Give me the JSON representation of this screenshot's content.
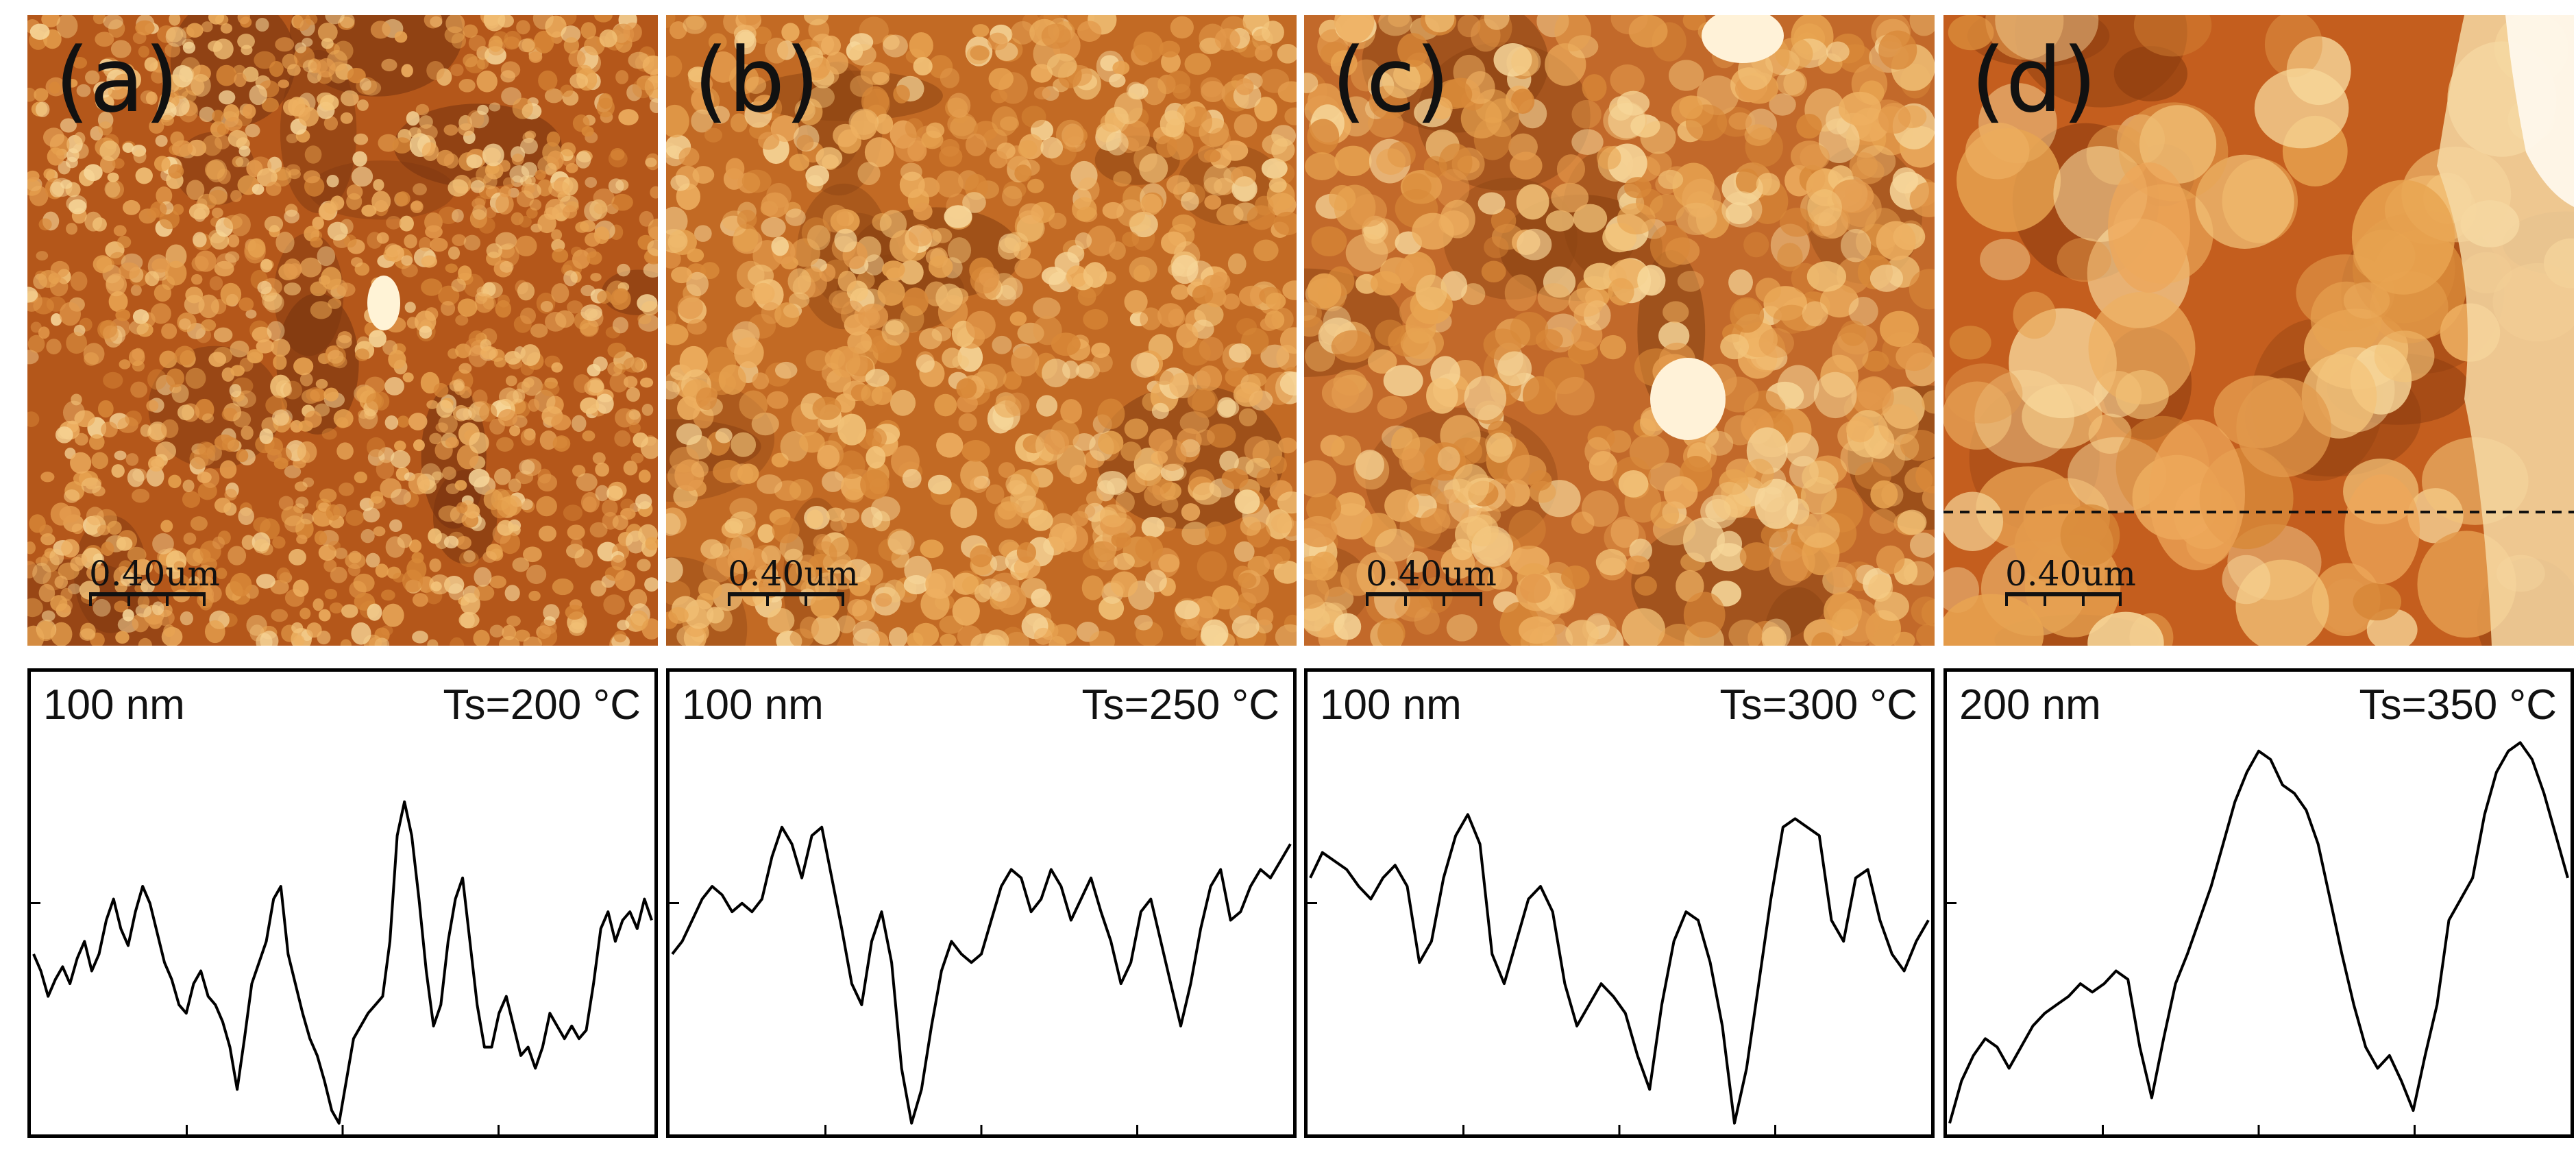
{
  "figure": {
    "panels": [
      {
        "id": "a",
        "label": "(a)",
        "scale_label": "0.40um",
        "height_scale": "100 nm",
        "temperature": "Ts=200 °C",
        "afm_style": "fine",
        "has_line_cut": false,
        "profile": [
          0.42,
          0.38,
          0.32,
          0.36,
          0.39,
          0.35,
          0.41,
          0.45,
          0.38,
          0.42,
          0.5,
          0.55,
          0.48,
          0.44,
          0.52,
          0.58,
          0.54,
          0.47,
          0.4,
          0.36,
          0.3,
          0.28,
          0.35,
          0.38,
          0.32,
          0.3,
          0.26,
          0.2,
          0.1,
          0.22,
          0.35,
          0.4,
          0.45,
          0.55,
          0.58,
          0.42,
          0.35,
          0.28,
          0.22,
          0.18,
          0.12,
          0.05,
          0.02,
          0.12,
          0.22,
          0.25,
          0.28,
          0.3,
          0.32,
          0.45,
          0.7,
          0.78,
          0.7,
          0.55,
          0.38,
          0.25,
          0.3,
          0.45,
          0.55,
          0.6,
          0.45,
          0.3,
          0.2,
          0.2,
          0.28,
          0.32,
          0.25,
          0.18,
          0.2,
          0.15,
          0.2,
          0.28,
          0.25,
          0.22,
          0.25,
          0.22,
          0.24,
          0.35,
          0.48,
          0.52,
          0.45,
          0.5,
          0.52,
          0.48,
          0.55,
          0.5
        ]
      },
      {
        "id": "b",
        "label": "(b)",
        "scale_label": "0.40um",
        "height_scale": "100 nm",
        "temperature": "Ts=250 °C",
        "afm_style": "medium",
        "has_line_cut": false,
        "profile": [
          0.42,
          0.45,
          0.5,
          0.55,
          0.58,
          0.56,
          0.52,
          0.54,
          0.52,
          0.55,
          0.65,
          0.72,
          0.68,
          0.6,
          0.7,
          0.72,
          0.6,
          0.48,
          0.35,
          0.3,
          0.45,
          0.52,
          0.4,
          0.15,
          0.02,
          0.1,
          0.25,
          0.38,
          0.45,
          0.42,
          0.4,
          0.42,
          0.5,
          0.58,
          0.62,
          0.6,
          0.52,
          0.55,
          0.62,
          0.58,
          0.5,
          0.55,
          0.6,
          0.52,
          0.45,
          0.35,
          0.4,
          0.52,
          0.55,
          0.45,
          0.35,
          0.25,
          0.35,
          0.48,
          0.58,
          0.62,
          0.5,
          0.52,
          0.58,
          0.62,
          0.6,
          0.64,
          0.68
        ]
      },
      {
        "id": "c",
        "label": "(c)",
        "scale_label": "0.40um",
        "height_scale": "100 nm",
        "temperature": "Ts=300 °C",
        "afm_style": "coarse",
        "has_line_cut": false,
        "profile": [
          0.6,
          0.66,
          0.64,
          0.62,
          0.58,
          0.55,
          0.6,
          0.63,
          0.58,
          0.4,
          0.45,
          0.6,
          0.7,
          0.75,
          0.68,
          0.42,
          0.35,
          0.45,
          0.55,
          0.58,
          0.52,
          0.35,
          0.25,
          0.3,
          0.35,
          0.32,
          0.28,
          0.18,
          0.1,
          0.3,
          0.45,
          0.52,
          0.5,
          0.4,
          0.25,
          0.02,
          0.15,
          0.35,
          0.55,
          0.72,
          0.74,
          0.72,
          0.7,
          0.5,
          0.45,
          0.6,
          0.62,
          0.5,
          0.42,
          0.38,
          0.45,
          0.5
        ]
      },
      {
        "id": "d",
        "label": "(d)",
        "scale_label": "0.40um",
        "height_scale": "200 nm",
        "temperature": "Ts=350 °C",
        "afm_style": "large",
        "has_line_cut": true,
        "profile": [
          0.02,
          0.12,
          0.18,
          0.22,
          0.2,
          0.15,
          0.2,
          0.25,
          0.28,
          0.3,
          0.32,
          0.35,
          0.33,
          0.35,
          0.38,
          0.36,
          0.2,
          0.08,
          0.22,
          0.35,
          0.42,
          0.5,
          0.58,
          0.68,
          0.78,
          0.85,
          0.9,
          0.88,
          0.82,
          0.8,
          0.76,
          0.68,
          0.55,
          0.42,
          0.3,
          0.2,
          0.15,
          0.18,
          0.12,
          0.05,
          0.18,
          0.3,
          0.5,
          0.55,
          0.6,
          0.75,
          0.85,
          0.9,
          0.92,
          0.88,
          0.8,
          0.7,
          0.6
        ]
      }
    ]
  }
}
